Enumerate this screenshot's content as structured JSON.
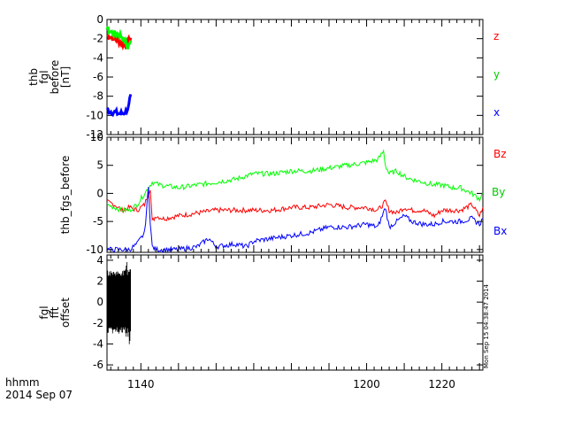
{
  "footer": {
    "line1": "hhmm",
    "line2": "2014 Sep 07"
  },
  "timestamp": "Mon Sep 15 04:38:47 2014",
  "x_ticks": [
    "1140",
    "1200",
    "1220"
  ],
  "chart_data": [
    {
      "type": "line",
      "ylabel_lines": [
        "thb",
        "fgl",
        "before",
        "[nT]"
      ],
      "ylim": [
        -12,
        0
      ],
      "yticks": [
        0,
        -2,
        -4,
        -6,
        -8,
        -10,
        -12
      ],
      "xlim": [
        1131.0,
        1230.9
      ],
      "colors": {
        "x": "#0000ff",
        "y": "#00ff00",
        "z": "#ff0000"
      },
      "series": [
        {
          "name": "z",
          "color": "#ff0000",
          "x": [
            1131.0,
            1132,
            1133,
            1134,
            1135,
            1136,
            1136.5,
            1137.3
          ],
          "y": [
            -1.6,
            -1.8,
            -2.0,
            -2.2,
            -2.5,
            -2.7,
            -2.4,
            -1.9
          ]
        },
        {
          "name": "y",
          "color": "#00ff00",
          "x": [
            1131.0,
            1132,
            1133,
            1134,
            1135,
            1136,
            1136.5,
            1137.3
          ],
          "y": [
            -1.0,
            -1.3,
            -1.5,
            -1.5,
            -1.8,
            -2.5,
            -2.9,
            -2.2
          ]
        },
        {
          "name": "x",
          "color": "#0000ff",
          "x": [
            1131.0,
            1132,
            1133,
            1134,
            1135,
            1136,
            1136.8,
            1137.3
          ],
          "y": [
            -9.4,
            -9.6,
            -9.7,
            -9.8,
            -9.8,
            -9.6,
            -9.0,
            -7.8
          ]
        }
      ]
    },
    {
      "type": "line",
      "ylabel_lines": [
        "thb_fgs_before"
      ],
      "ylim": [
        -10.5,
        10
      ],
      "yticks": [
        10,
        5,
        0,
        -5,
        -10
      ],
      "xlim": [
        1131.0,
        1230.9
      ],
      "series": [
        {
          "name": "Bz",
          "color": "#ff0000",
          "x": [
            1131,
            1133,
            1135,
            1137,
            1139,
            1141,
            1142.5,
            1143,
            1144,
            1146,
            1150,
            1155,
            1160,
            1165,
            1170,
            1175,
            1180,
            1185,
            1190,
            1195,
            1200,
            1203,
            1205,
            1206,
            1208,
            1210,
            1212,
            1215,
            1218,
            1220,
            1223,
            1225,
            1228,
            1230,
            1230.9
          ],
          "y": [
            -1.5,
            -2,
            -3,
            -2.5,
            -3,
            -2,
            1,
            -5,
            -4,
            -4.5,
            -4,
            -3.5,
            -3,
            -3,
            -3,
            -3,
            -2.5,
            -2.5,
            -2,
            -2.5,
            -2.5,
            -3,
            -1.5,
            -3,
            -3.5,
            -2.5,
            -3,
            -3,
            -4,
            -3,
            -3,
            -3,
            -2,
            -4,
            -2.5
          ]
        },
        {
          "name": "By",
          "color": "#00ff00",
          "x": [
            1131,
            1133,
            1135,
            1137,
            1139,
            1141,
            1143,
            1145,
            1150,
            1155,
            1160,
            1165,
            1170,
            1175,
            1180,
            1185,
            1190,
            1195,
            1200,
            1203,
            1204.5,
            1205,
            1206,
            1208,
            1210,
            1212,
            1215,
            1218,
            1220,
            1223,
            1225,
            1228,
            1230,
            1230.9
          ],
          "y": [
            -2,
            -2.5,
            -3,
            -3,
            -2,
            0,
            2,
            1.5,
            1,
            1.5,
            2,
            2.5,
            3.5,
            3.5,
            4,
            4,
            4.5,
            5,
            5.5,
            6,
            7.5,
            5,
            3.5,
            4,
            3,
            2.5,
            2,
            1.5,
            1.5,
            1,
            1,
            0,
            -1,
            0
          ]
        },
        {
          "name": "Bx",
          "color": "#0000ff",
          "x": [
            1131,
            1133,
            1135,
            1137,
            1139,
            1141,
            1142,
            1142.5,
            1143,
            1144,
            1146,
            1150,
            1155,
            1158,
            1160,
            1165,
            1168,
            1170,
            1175,
            1180,
            1185,
            1190,
            1195,
            1200,
            1203,
            1205,
            1206,
            1208,
            1210,
            1212,
            1215,
            1218,
            1220,
            1223,
            1225,
            1228,
            1230,
            1230.9
          ],
          "y": [
            -10,
            -10,
            -10,
            -10,
            -9,
            -7,
            1,
            -5,
            -9.5,
            -10,
            -10,
            -10,
            -9.5,
            -8,
            -9.5,
            -9,
            -9.5,
            -8.5,
            -8,
            -7.5,
            -7,
            -6,
            -6,
            -5.5,
            -6,
            -2.5,
            -6,
            -5,
            -4,
            -5,
            -5.5,
            -5.5,
            -5,
            -5,
            -5,
            -4.5,
            -5.5,
            -4.5
          ]
        }
      ]
    },
    {
      "type": "line",
      "ylabel_lines": [
        "fgl",
        "fft",
        "offset"
      ],
      "ylim": [
        -6.5,
        4.5
      ],
      "yticks": [
        4,
        2,
        0,
        -2,
        -4,
        -6
      ],
      "xlim": [
        1131.0,
        1230.9
      ],
      "series": [
        {
          "name": "",
          "color": "#000000",
          "x": [
            1131.0,
            1137.3
          ],
          "y_range": [
            -4.2,
            4.0
          ],
          "band": [
            -2.4,
            2.5
          ]
        }
      ]
    }
  ]
}
